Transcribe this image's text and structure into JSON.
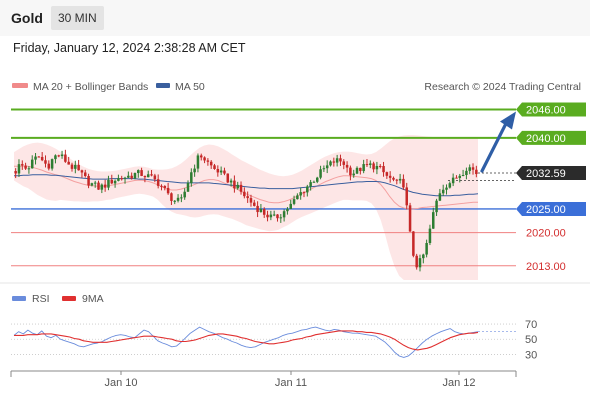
{
  "header": {
    "symbol": "Gold",
    "timeframe": "30 MIN",
    "datetime": "Friday, January 12, 2024 2:38:28 AM CET"
  },
  "legend": {
    "ma20": "MA 20 + Bollinger Bands",
    "ma50": "MA 50",
    "credit": "Research © 2024 Trading Central"
  },
  "rsi_legend": {
    "rsi": "RSI",
    "ma9": "9MA"
  },
  "colors": {
    "bull": "#2e7d32",
    "bear": "#c62828",
    "green_line": "#5aac20",
    "blue_line": "#3b6fd8",
    "red_line": "#f08080",
    "band_fill": "#fde2e2",
    "ma50": "#3a5f9e",
    "rsi": "#6a8cdc",
    "rsi_ma": "#e03030",
    "arrow": "#2f5ea6"
  },
  "chart_data": [
    {
      "type": "candlestick",
      "title": "",
      "x_ticks": [
        "Jan 10",
        "Jan 11",
        "Jan 12"
      ],
      "ylim": [
        2010,
        2048
      ],
      "current_price": 2032.59,
      "price_labels": [
        "2046.00",
        "2040.00",
        "2032.59",
        "2025.00",
        "2020.00",
        "2013.00"
      ],
      "levels": [
        {
          "value": 2046.0,
          "label": "2046.00",
          "kind": "resistance"
        },
        {
          "value": 2040.0,
          "label": "2040.00",
          "kind": "resistance"
        },
        {
          "value": 2025.0,
          "label": "2025.00",
          "kind": "pivot"
        },
        {
          "value": 2020.0,
          "label": "2020.00",
          "kind": "support"
        },
        {
          "value": 2013.0,
          "label": "2013.00",
          "kind": "support"
        }
      ],
      "close_path": [
        2033,
        2034.5,
        2033.5,
        2034,
        2035.5,
        2036,
        2035,
        2034,
        2035.5,
        2036.5,
        2036,
        2035,
        2034,
        2033.5,
        2032.5,
        2031.5,
        2030.5,
        2030,
        2029.5,
        2029.8,
        2030.4,
        2031,
        2031.3,
        2031.6,
        2031.8,
        2032,
        2032.4,
        2032.5,
        2032.1,
        2031.8,
        2031.2,
        2030.5,
        2029.5,
        2028,
        2027.2,
        2026.5,
        2026.8,
        2029.5,
        2032.5,
        2034.5,
        2036.5,
        2035.5,
        2034.5,
        2033.5,
        2033,
        2032,
        2031.2,
        2030.5,
        2029.5,
        2028.5,
        2027.5,
        2026.5,
        2025.5,
        2024.8,
        2024,
        2023.5,
        2023,
        2023.5,
        2024.2,
        2025.2,
        2026,
        2027.5,
        2028.5,
        2029.5,
        2030.5,
        2031.5,
        2032.5,
        2033.5,
        2034.2,
        2035,
        2035.2,
        2035,
        2033.5,
        2032.5,
        2033,
        2033.6,
        2034,
        2034.2,
        2034,
        2033.5,
        2032.5,
        2031.5,
        2031,
        2030,
        2031.5,
        2024.5,
        2016.5,
        2013.2,
        2014,
        2016.5,
        2021,
        2025.5,
        2028.5,
        2029.8,
        2030.5,
        2031,
        2032,
        2032.8,
        2034,
        2033.5,
        2032.6
      ],
      "ma20": [
        2034,
        2034,
        2034,
        2034,
        2033.8,
        2033.5,
        2033.2,
        2032.8,
        2032.5,
        2032.2,
        2032,
        2031.6,
        2031.2,
        2030.8,
        2030.5,
        2030.2,
        2030,
        2029.9,
        2029.8,
        2029.8,
        2029.9,
        2030,
        2030.2,
        2030.4,
        2030.6,
        2030.8,
        2031,
        2031.1,
        2031,
        2030.8,
        2030.5,
        2030.1,
        2029.6,
        2029.2,
        2029,
        2029,
        2029.2,
        2029.5,
        2029.8,
        2030.2,
        2030.6,
        2031,
        2031.2,
        2031.2,
        2031,
        2030.6,
        2030.2,
        2029.7,
        2029.2,
        2028.7,
        2028.2,
        2027.8,
        2027.4,
        2027,
        2026.7,
        2026.4,
        2026.3,
        2026.3,
        2026.5,
        2026.8,
        2027.2,
        2027.7,
        2028.2,
        2028.7,
        2029.2,
        2029.7,
        2030.2,
        2030.7,
        2031.1,
        2031.5,
        2031.8,
        2032,
        2032,
        2031.9,
        2031.8,
        2031.7,
        2031.6,
        2031.4,
        2031,
        2030.2,
        2029,
        2027.6,
        2026.4,
        2025.6,
        2025.2,
        2025,
        2025,
        2025.1,
        2025.3,
        2025.4,
        2025.5,
        2025.6,
        2025.7,
        2025.8,
        2025.9,
        2026,
        2026.1,
        2026.2,
        2026.3,
        2026.4,
        2026.4
      ],
      "ma50": [
        2032,
        2032,
        2032.1,
        2032.1,
        2032.2,
        2032.2,
        2032.2,
        2032.2,
        2032.1,
        2032.1,
        2032,
        2031.9,
        2031.8,
        2031.7,
        2031.6,
        2031.5,
        2031.4,
        2031.3,
        2031.3,
        2031.3,
        2031.3,
        2031.4,
        2031.4,
        2031.4,
        2031.4,
        2031.4,
        2031.4,
        2031.3,
        2031.3,
        2031.2,
        2031.1,
        2031,
        2030.9,
        2030.8,
        2030.7,
        2030.6,
        2030.5,
        2030.5,
        2030.5,
        2030.5,
        2030.5,
        2030.5,
        2030.5,
        2030.4,
        2030.3,
        2030.2,
        2030.1,
        2030,
        2029.9,
        2029.8,
        2029.7,
        2029.6,
        2029.5,
        2029.4,
        2029.4,
        2029.3,
        2029.3,
        2029.3,
        2029.3,
        2029.3,
        2029.3,
        2029.4,
        2029.5,
        2029.6,
        2029.7,
        2029.8,
        2029.9,
        2030,
        2030.1,
        2030.2,
        2030.3,
        2030.4,
        2030.5,
        2030.6,
        2030.7,
        2030.7,
        2030.8,
        2030.8,
        2030.8,
        2030.7,
        2030.5,
        2030.2,
        2029.9,
        2029.5,
        2029.1,
        2028.8,
        2028.5,
        2028.3,
        2028.1,
        2028,
        2027.9,
        2027.8,
        2027.8,
        2027.8,
        2027.8,
        2027.9,
        2027.9,
        2028,
        2028.1,
        2028.1,
        2028.2
      ],
      "bb_upper": [
        2037,
        2037.6,
        2038.2,
        2038.6,
        2038.9,
        2039,
        2038.9,
        2038.6,
        2038.2,
        2037.7,
        2037.1,
        2036.4,
        2035.7,
        2035,
        2034.4,
        2033.9,
        2033.5,
        2033.2,
        2033,
        2032.9,
        2032.9,
        2033,
        2033.1,
        2033.3,
        2033.5,
        2033.7,
        2033.9,
        2034,
        2033.9,
        2033.7,
        2033.4,
        2033.3,
        2033.3,
        2033.4,
        2033.6,
        2034,
        2034.6,
        2035.4,
        2036.3,
        2037.2,
        2037.9,
        2038.4,
        2038.6,
        2038.5,
        2038.2,
        2037.7,
        2037.2,
        2036.5,
        2035.9,
        2035.3,
        2034.8,
        2034.3,
        2033.8,
        2033.3,
        2032.9,
        2032.5,
        2032.2,
        2032,
        2031.9,
        2032,
        2032.2,
        2032.6,
        2033.1,
        2033.7,
        2034.3,
        2034.9,
        2035.5,
        2036,
        2036.4,
        2036.8,
        2037,
        2037.1,
        2037.1,
        2037,
        2036.8,
        2036.6,
        2036.5,
        2036.6,
        2037,
        2037.7,
        2038.5,
        2039.3,
        2039.9,
        2040.3,
        2040.5,
        2040.6,
        2040.6,
        2040.5,
        2040.4,
        2040.3,
        2040.2,
        2040.1,
        2040,
        2040,
        2040,
        2040,
        2040,
        2040,
        2040,
        2040,
        2040
      ],
      "bb_lower": [
        2031,
        2030.4,
        2029.8,
        2029.4,
        2028.7,
        2028,
        2027.5,
        2027,
        2026.8,
        2026.7,
        2026.9,
        2026.8,
        2026.7,
        2026.6,
        2026.6,
        2026.5,
        2026.5,
        2026.6,
        2026.6,
        2026.7,
        2026.9,
        2027,
        2027.3,
        2027.5,
        2027.7,
        2027.9,
        2028.1,
        2028.2,
        2028.1,
        2027.9,
        2027.6,
        2026.9,
        2025.9,
        2025,
        2024.4,
        2024,
        2023.8,
        2023.6,
        2023.3,
        2023.2,
        2023.3,
        2023.6,
        2023.8,
        2023.9,
        2023.8,
        2023.5,
        2023.2,
        2022.9,
        2022.5,
        2022.1,
        2021.6,
        2021.3,
        2021,
        2020.7,
        2020.5,
        2020.3,
        2020.4,
        2020.6,
        2021.1,
        2021.6,
        2022.2,
        2022.8,
        2023.3,
        2023.7,
        2024.1,
        2024.5,
        2024.9,
        2025.4,
        2025.8,
        2026.2,
        2026.6,
        2026.9,
        2026.9,
        2026.8,
        2026.8,
        2026.8,
        2026.7,
        2026.2,
        2025,
        2022.7,
        2019.5,
        2015.9,
        2012.9,
        2010.9,
        2010,
        2010,
        2010,
        2010,
        2010,
        2010,
        2010,
        2010,
        2010,
        2010,
        2010,
        2010,
        2010,
        2010,
        2010,
        2010,
        2010
      ]
    },
    {
      "type": "line",
      "title": "",
      "ylim": [
        20,
        78
      ],
      "y_ticks": [
        "70",
        "50",
        "30"
      ],
      "x_ticks": [
        "Jan 10",
        "Jan 11",
        "Jan 12"
      ],
      "series": [
        {
          "name": "RSI",
          "values": [
            55,
            60,
            57,
            62,
            58,
            56,
            61,
            54,
            52,
            55,
            50,
            48,
            46,
            44,
            41,
            40,
            42,
            44,
            45,
            47,
            50,
            53,
            55,
            56,
            55,
            53,
            52,
            57,
            62,
            60,
            54,
            48,
            45,
            43,
            40,
            41,
            46,
            52,
            58,
            62,
            66,
            63,
            60,
            58,
            55,
            52,
            50,
            47,
            45,
            42,
            40,
            39,
            40,
            43,
            46,
            48,
            50,
            52,
            55,
            57,
            58,
            60,
            62,
            63,
            65,
            66,
            64,
            62,
            61,
            63,
            62,
            60,
            59,
            58,
            58,
            57,
            56,
            55,
            54,
            50,
            46,
            40,
            33,
            28,
            26,
            28,
            33,
            39,
            45,
            50,
            54,
            57,
            60,
            62,
            64,
            60,
            58,
            57,
            58,
            59,
            60
          ]
        },
        {
          "name": "9MA",
          "values": [
            55,
            55,
            55,
            56,
            56,
            56,
            57,
            57,
            57,
            56,
            55,
            54,
            53,
            51,
            50,
            48,
            47,
            46,
            46,
            46,
            46,
            47,
            48,
            49,
            50,
            51,
            52,
            53,
            54,
            54,
            54,
            53,
            52,
            51,
            50,
            48,
            47,
            47,
            48,
            49,
            51,
            53,
            55,
            56,
            57,
            57,
            56,
            55,
            54,
            52,
            51,
            49,
            47,
            46,
            45,
            44,
            44,
            45,
            46,
            47,
            49,
            50,
            51,
            53,
            54,
            56,
            57,
            58,
            59,
            60,
            61,
            61,
            61,
            61,
            60,
            60,
            59,
            59,
            58,
            57,
            55,
            53,
            50,
            46,
            42,
            39,
            37,
            36,
            37,
            38,
            40,
            43,
            46,
            49,
            52,
            54,
            56,
            57,
            58,
            58,
            59
          ]
        }
      ]
    }
  ]
}
